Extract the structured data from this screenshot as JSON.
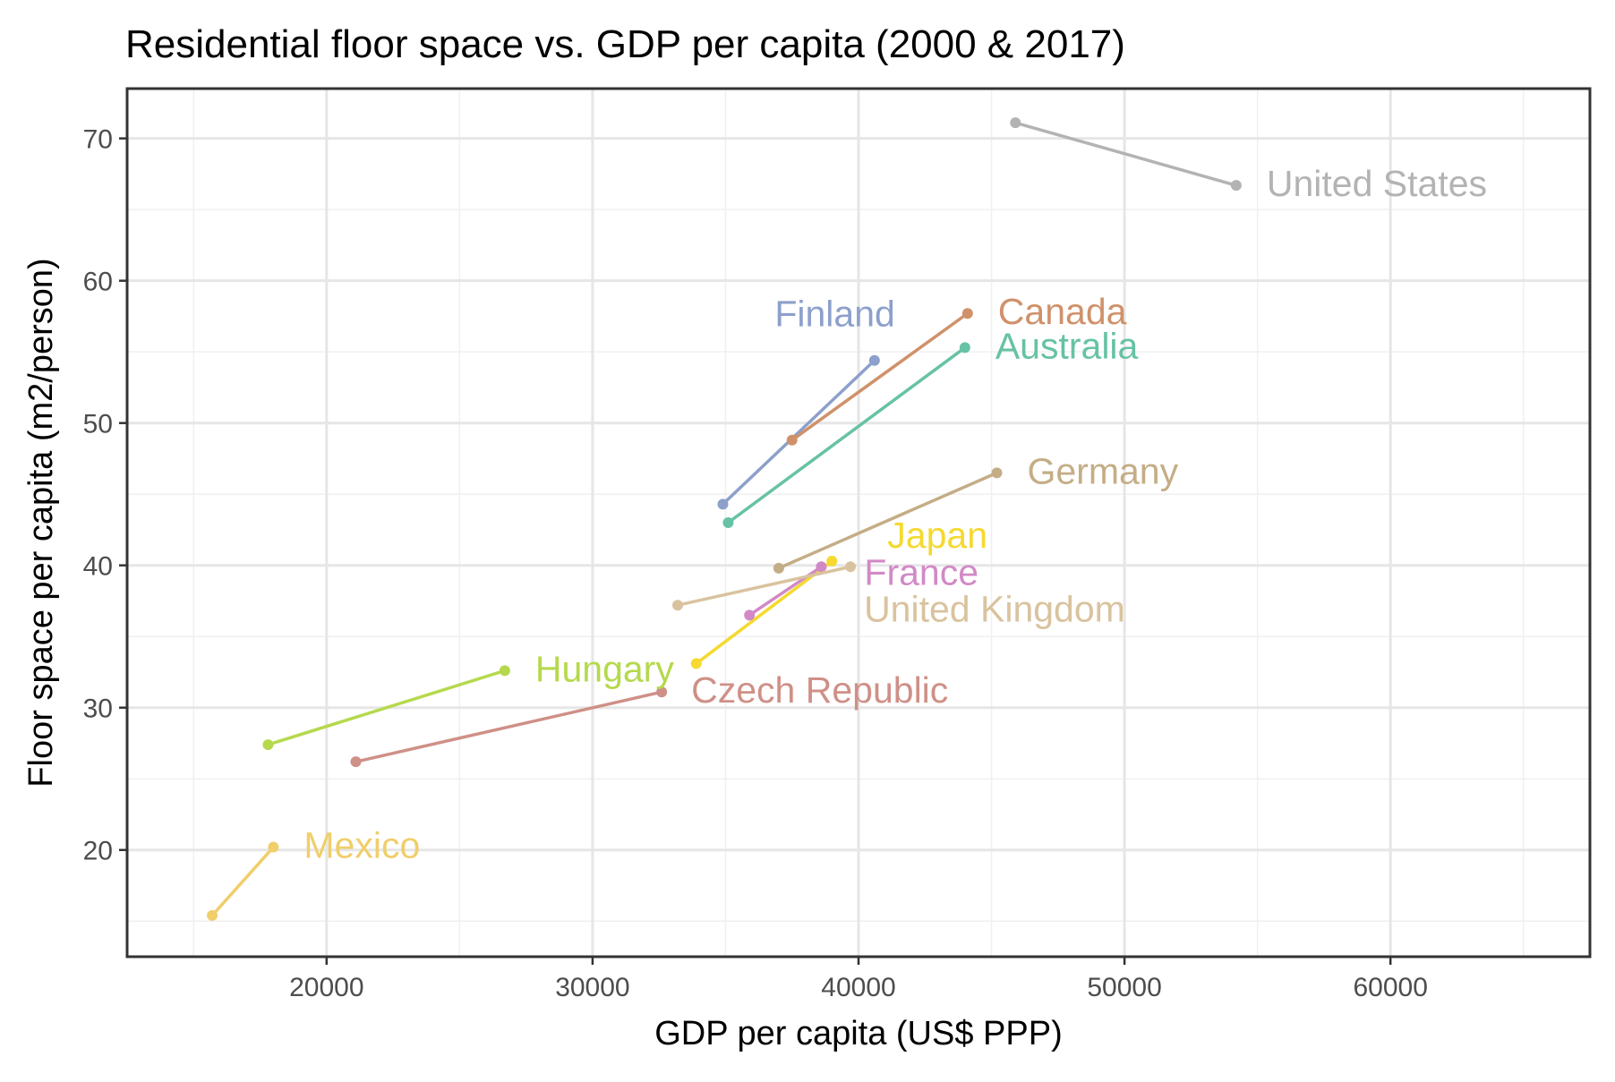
{
  "chart_data": {
    "type": "line",
    "title": "Residential floor space vs. GDP per capita (2000 & 2017)",
    "xlabel": "GDP per capita (US$ PPP)",
    "ylabel": "Floor space per capita (m2/person)",
    "xlim": [
      12500,
      67500
    ],
    "ylim": [
      12.5,
      73.5
    ],
    "x_ticks": [
      20000,
      30000,
      40000,
      50000,
      60000
    ],
    "y_ticks": [
      20,
      30,
      40,
      50,
      60,
      70
    ],
    "x_minor_ticks": [
      15000,
      25000,
      35000,
      45000,
      55000,
      65000
    ],
    "y_minor_ticks": [
      15,
      25,
      35,
      45,
      55,
      65
    ],
    "grid": true,
    "legend": "none",
    "series": [
      {
        "name": "United States",
        "color": "#b3b3b3",
        "points": [
          [
            45900,
            71.1
          ],
          [
            54200,
            66.7
          ]
        ]
      },
      {
        "name": "Finland",
        "color": "#8da0cb",
        "points": [
          [
            34900,
            44.3
          ],
          [
            40600,
            54.4
          ]
        ]
      },
      {
        "name": "Canada",
        "color": "#d0916a",
        "points": [
          [
            37500,
            48.8
          ],
          [
            44100,
            57.7
          ]
        ]
      },
      {
        "name": "Australia",
        "color": "#66c2a5",
        "points": [
          [
            35100,
            43.0
          ],
          [
            44000,
            55.3
          ]
        ]
      },
      {
        "name": "Germany",
        "color": "#c4ad86",
        "points": [
          [
            37000,
            39.8
          ],
          [
            45200,
            46.5
          ]
        ]
      },
      {
        "name": "Japan",
        "color": "#f5d92f",
        "points": [
          [
            33900,
            33.1
          ],
          [
            39000,
            40.3
          ]
        ]
      },
      {
        "name": "France",
        "color": "#d18ac6",
        "points": [
          [
            35900,
            36.5
          ],
          [
            38600,
            39.9
          ]
        ]
      },
      {
        "name": "United Kingdom",
        "color": "#d9c39e",
        "points": [
          [
            33200,
            37.2
          ],
          [
            39700,
            39.9
          ]
        ]
      },
      {
        "name": "Hungary",
        "color": "#b5d94c",
        "points": [
          [
            17800,
            27.4
          ],
          [
            26700,
            32.6
          ]
        ]
      },
      {
        "name": "Czech Republic",
        "color": "#cf9087",
        "points": [
          [
            21100,
            26.2
          ],
          [
            32600,
            31.1
          ]
        ]
      },
      {
        "name": "Mexico",
        "color": "#f0ce6a",
        "points": [
          [
            15700,
            15.4
          ],
          [
            18000,
            20.2
          ]
        ]
      }
    ]
  }
}
